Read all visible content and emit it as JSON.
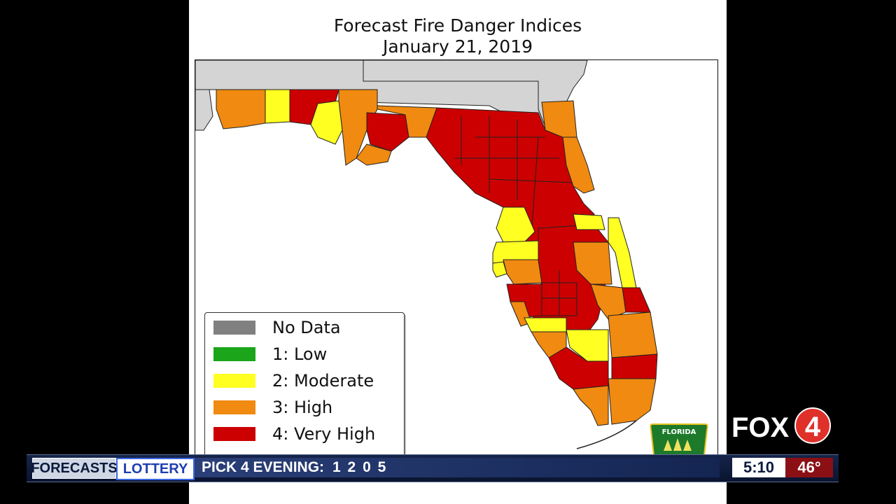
{
  "map": {
    "title_line1": "Forecast Fire Danger Indices",
    "title_line2": "January 21, 2019",
    "legend": [
      {
        "label": "No Data",
        "color": "#808080"
      },
      {
        "label": "1: Low",
        "color": "#1aa51a"
      },
      {
        "label": "2: Moderate",
        "color": "#ffff22"
      },
      {
        "label": "3: High",
        "color": "#f08a10"
      },
      {
        "label": "4: Very High",
        "color": "#cc0000"
      }
    ],
    "badge_text": "FLORIDA",
    "colors": {
      "outside_state": "#d4d4d4",
      "water": "#ffffff",
      "border": "#222222"
    }
  },
  "branding": {
    "station": "FOX",
    "channel_number": "4"
  },
  "ticker": {
    "section1": "FORECASTS",
    "section2": "LOTTERY",
    "headline_label": "PICK 4 EVENING:",
    "headline_numbers": "1 2 0 5",
    "time": "5:10",
    "temperature": "46°"
  }
}
